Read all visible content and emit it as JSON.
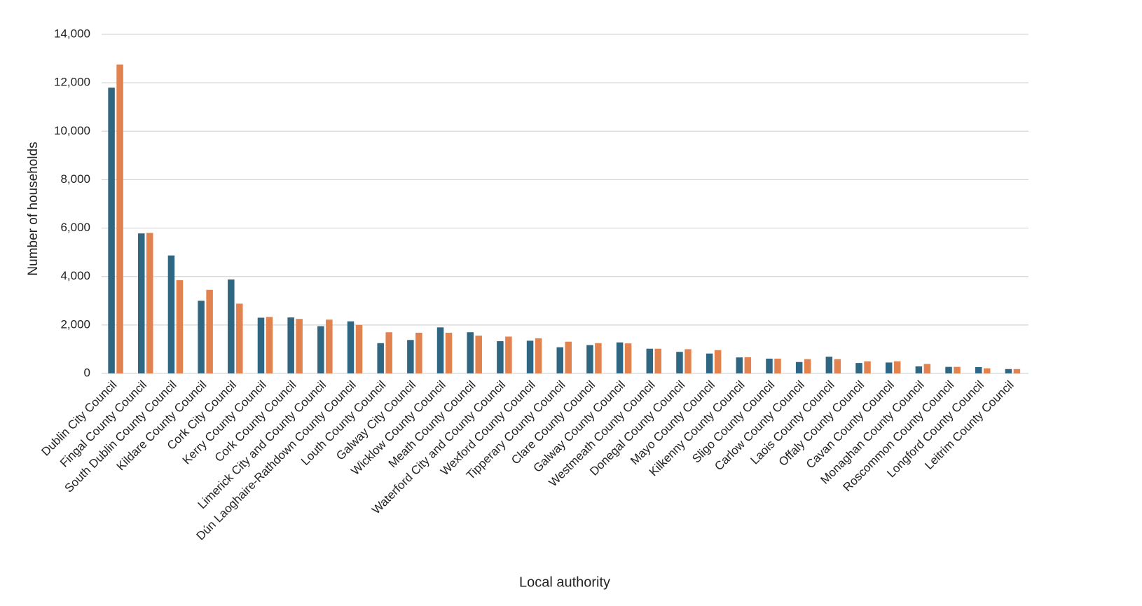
{
  "chart_data": {
    "type": "bar",
    "y_label": "Number of households",
    "x_label": "Local authority",
    "categories": [
      "Dublin City Council",
      "Fingal County Council",
      "South Dublin County Council",
      "Kildare County Council",
      "Cork City Council",
      "Kerry County Council",
      "Cork County Council",
      "Limerick City and County Council",
      "Dún Laoghaire-Rathdown County Council",
      "Louth County Council",
      "Galway City Council",
      "Wicklow County Council",
      "Meath County Council",
      "Waterford City and County Council",
      "Wexford County Council",
      "Tipperary County Council",
      "Clare County Council",
      "Galway County Council",
      "Westmeath County Council",
      "Donegal County Council",
      "Mayo County Council",
      "Kilkenny County Council",
      "Sligo County Council",
      "Carlow County Council",
      "Laois County Council",
      "Offaly County Council",
      "Cavan County Council",
      "Monaghan County Council",
      "Roscommon County Council",
      "Longford County Council",
      "Leitrim County Council"
    ],
    "series": [
      {
        "color": "#2f6682",
        "values": [
          11800,
          5780,
          4870,
          3000,
          3880,
          2300,
          2310,
          1950,
          2150,
          1250,
          1380,
          1900,
          1700,
          1330,
          1350,
          1080,
          1170,
          1280,
          1020,
          890,
          820,
          660,
          610,
          470,
          690,
          430,
          450,
          290,
          270,
          260,
          180
        ]
      },
      {
        "color": "#e2824f",
        "values": [
          12750,
          5800,
          3850,
          3450,
          2880,
          2330,
          2250,
          2220,
          2000,
          1700,
          1680,
          1680,
          1560,
          1520,
          1450,
          1310,
          1250,
          1240,
          1020,
          1000,
          960,
          670,
          610,
          590,
          590,
          500,
          500,
          390,
          270,
          210,
          180
        ]
      }
    ],
    "ylim": [
      0,
      14000
    ],
    "yticks": [
      0,
      {
        "value": 2000,
        "label": "2,000"
      },
      {
        "value": 4000,
        "label": "4,000"
      },
      {
        "value": 6000,
        "label": "6,000"
      },
      {
        "value": 8000,
        "label": "8,000"
      },
      {
        "value": 10000,
        "label": "10,000"
      },
      {
        "value": 12000,
        "label": "12,000"
      },
      {
        "value": 14000,
        "label": "14,000"
      }
    ],
    "grid": true
  }
}
